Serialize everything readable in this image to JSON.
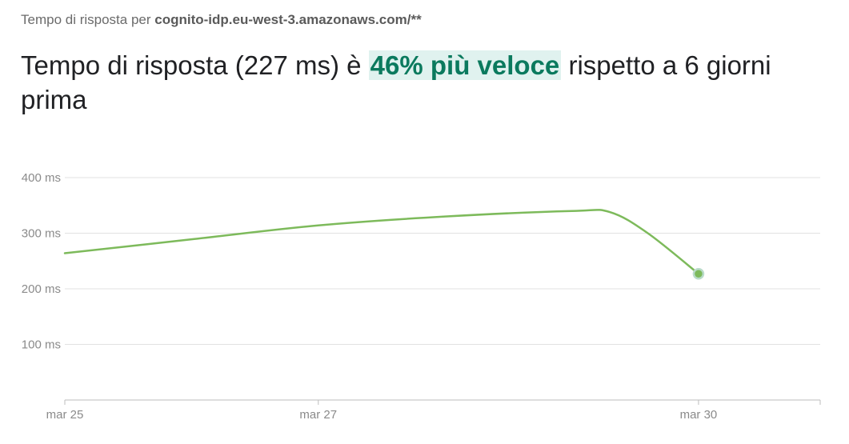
{
  "header": {
    "subtitle_prefix": "Tempo di risposta per ",
    "subtitle_host": "cognito-idp.eu-west-3.amazonaws.com/**",
    "headline_before": "Tempo di risposta (227 ms) è ",
    "headline_highlight": "46% più veloce",
    "headline_after": " rispetto a 6 giorni prima"
  },
  "colors": {
    "line": "#7dba5b",
    "highlight_text": "#0b7a5e",
    "highlight_bg": "#e0f2ef",
    "grid": "#e2e2e2"
  },
  "chart_data": {
    "type": "line",
    "title": "",
    "xlabel": "",
    "ylabel": "",
    "y_ticks": [
      {
        "value": 100,
        "label": "100 ms"
      },
      {
        "value": 200,
        "label": "200 ms"
      },
      {
        "value": 300,
        "label": "300 ms"
      },
      {
        "value": 400,
        "label": "400 ms"
      }
    ],
    "ylim": [
      0,
      400
    ],
    "x_ticks": [
      {
        "value": 25,
        "label": "mar 25"
      },
      {
        "value": 27,
        "label": "mar 27"
      },
      {
        "value": 30,
        "label": "mar 30"
      }
    ],
    "xlim": [
      25,
      30.96
    ],
    "grid": true,
    "series": [
      {
        "x": [
          25,
          26,
          27,
          28,
          29,
          29.3,
          29.6,
          30
        ],
        "values": [
          264,
          289,
          314,
          330,
          340,
          338,
          300,
          227
        ]
      }
    ],
    "last_point_marker": true
  }
}
